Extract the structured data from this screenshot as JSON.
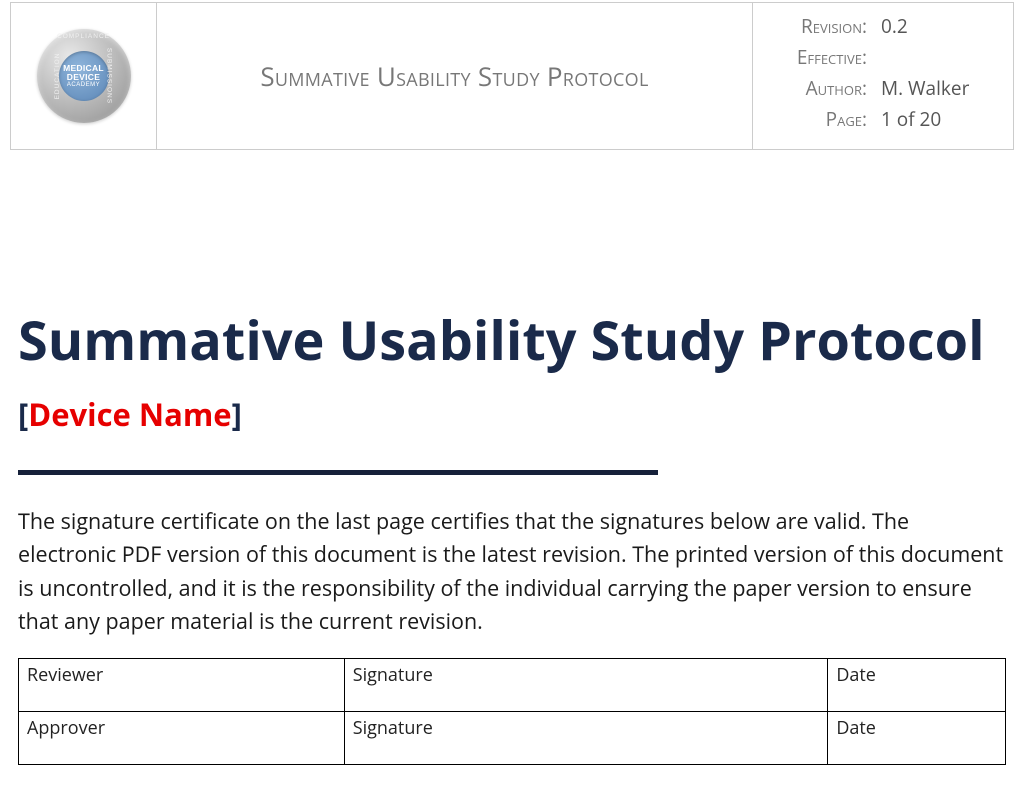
{
  "header": {
    "logo": {
      "line1": "MEDICAL",
      "line2": "DEVICE",
      "line3": "ACADEMY",
      "ring_top": "COMPLIANCE",
      "ring_left": "EDUCATION",
      "ring_right": "SUBMISSIONS",
      "outer_gradient_light": "#e8e8e8",
      "outer_gradient_dark": "#888888",
      "inner_gradient_light": "#8fb5db",
      "inner_gradient_dark": "#5a85b5"
    },
    "title": "Summative Usability Study Protocol",
    "meta": {
      "revision_label": "Revision:",
      "revision_value": "0.2",
      "effective_label": "Effective:",
      "effective_value": "",
      "author_label": "Author:",
      "author_value": "M. Walker",
      "page_label": "Page:",
      "page_value": "1 of 20"
    },
    "border_color": "#cccccc",
    "meta_text_color": "#777777"
  },
  "body": {
    "main_title": "Summative Usability Study Protocol",
    "main_title_color": "#1a2a4a",
    "main_title_fontsize": 54,
    "device_bracket_open": "[",
    "device_placeholder": "Device Name",
    "device_bracket_close": "]",
    "device_placeholder_color": "#e60000",
    "divider_color": "#16213a",
    "divider_width": 640,
    "divider_height": 5,
    "certification_text": "The signature certificate on the last page certifies that the signatures below are valid. The electronic PDF version of this document is the latest revision. The printed version of this document is uncontrolled, and it is the responsibility of the individual carrying the paper version to ensure that any paper material is the current revision.",
    "sig_table": {
      "rows": [
        {
          "role": "Reviewer",
          "sig": "Signature",
          "date": "Date"
        },
        {
          "role": "Approver",
          "sig": "Signature",
          "date": "Date"
        }
      ],
      "border_color": "#000000",
      "col_widths_percent": [
        33,
        49,
        18
      ]
    }
  }
}
